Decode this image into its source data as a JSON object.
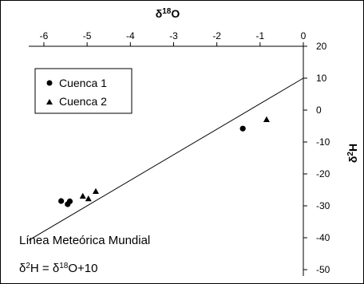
{
  "chart_data": {
    "type": "scatter",
    "x_axis": {
      "label": "δ",
      "label_sup": "18",
      "label_suffix": "O",
      "position": "top",
      "ticks": [
        "-6",
        "-5",
        "-4",
        "-3",
        "-2",
        "-1",
        "0"
      ],
      "range": [
        -6.35,
        0
      ]
    },
    "y_axis": {
      "label": "δ",
      "label_sup": "2",
      "label_suffix": "H",
      "position": "right",
      "ticks": [
        "20",
        "10",
        "0",
        "-10",
        "-20",
        "-30",
        "-40",
        "-50"
      ],
      "range": [
        -52,
        20
      ]
    },
    "series": [
      {
        "name": "Cuenca 1",
        "marker": "circle",
        "points": [
          [
            -5.6,
            -28.5
          ],
          [
            -5.45,
            -29.5
          ],
          [
            -5.4,
            -28.6
          ],
          [
            -1.4,
            -5.8
          ]
        ]
      },
      {
        "name": "Cuenca 2",
        "marker": "triangle",
        "points": [
          [
            -5.1,
            -27.0
          ],
          [
            -4.97,
            -27.8
          ],
          [
            -4.8,
            -25.5
          ],
          [
            -0.85,
            -3.0
          ]
        ]
      }
    ],
    "line": {
      "label": "Línea Meteórica Mundial",
      "equation_parts": [
        "δ",
        "2",
        "H = δ",
        "18",
        "O+10"
      ],
      "slope": 8,
      "intercept": 10
    },
    "legend_position": "top-left",
    "grid": false
  }
}
